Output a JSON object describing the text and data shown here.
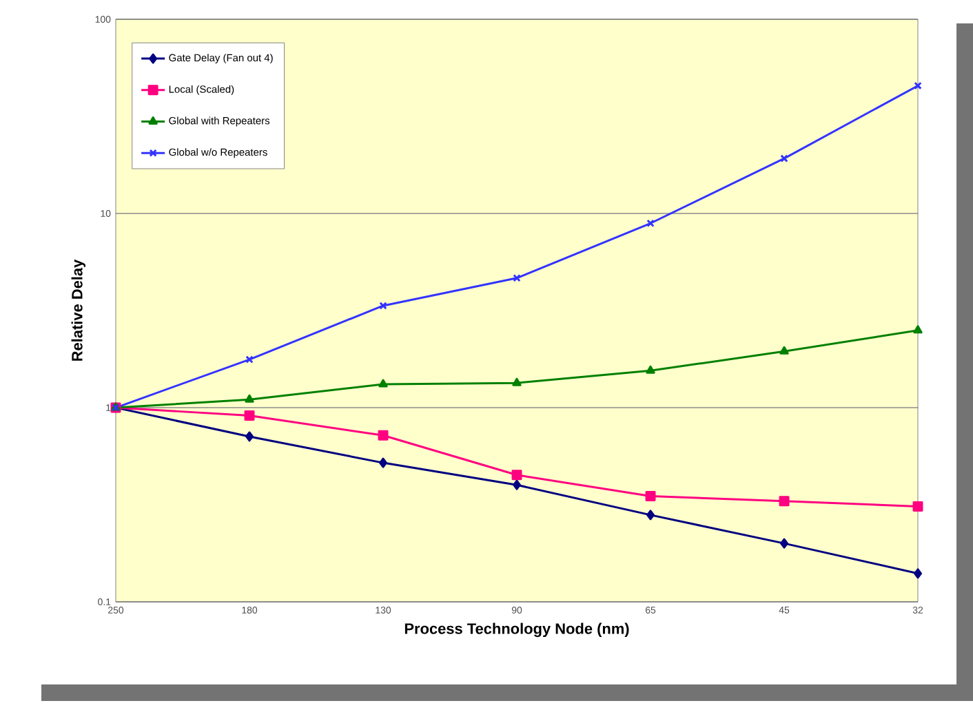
{
  "chart_data": {
    "type": "line",
    "xlabel": "Process Technology Node (nm)",
    "ylabel": "Relative Delay",
    "categories": [
      "250",
      "180",
      "130",
      "90",
      "65",
      "45",
      "32"
    ],
    "log": "y",
    "ylim": [
      0.1,
      100
    ],
    "yticks": [
      0.1,
      1,
      10,
      100
    ],
    "grid": "y",
    "legend": "top left",
    "series": [
      {
        "name": "Gate Delay (Fan out 4)",
        "color": "#000080",
        "marker": "diamond",
        "values": [
          1,
          0.71,
          0.52,
          0.4,
          0.28,
          0.2,
          0.14
        ]
      },
      {
        "name": "Local (Scaled)",
        "color": "#ff0080",
        "marker": "square",
        "values": [
          1,
          0.91,
          0.72,
          0.45,
          0.35,
          0.33,
          0.31
        ]
      },
      {
        "name": "Global with Repeaters",
        "color": "#008000",
        "marker": "triangle",
        "values": [
          1,
          1.1,
          1.32,
          1.34,
          1.55,
          1.95,
          2.5
        ]
      },
      {
        "name": "Global w/o Repeaters",
        "color": "#3333ff",
        "marker": "cross",
        "values": [
          1,
          1.77,
          3.35,
          4.65,
          8.9,
          19.2,
          45.5
        ]
      }
    ]
  }
}
